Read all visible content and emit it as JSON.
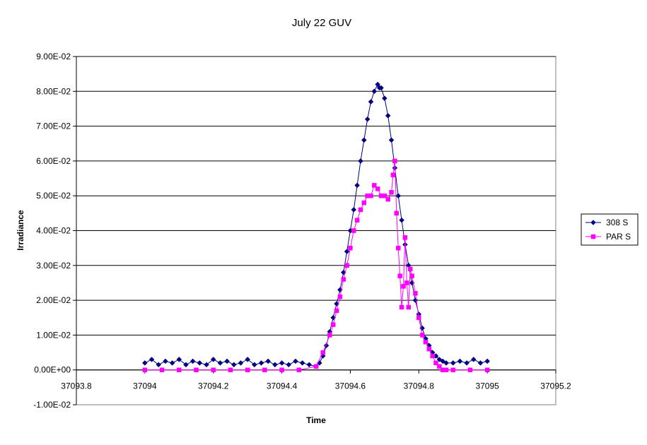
{
  "chart_data": {
    "type": "scatter",
    "title": "July 22 GUV",
    "xlabel": "Time",
    "ylabel": "Irradiance",
    "xlim": [
      37093.8,
      37095.2
    ],
    "ylim": [
      -0.01,
      0.09
    ],
    "x_ticks": [
      37093.8,
      37094,
      37094.2,
      37094.4,
      37094.6,
      37094.8,
      37095,
      37095.2
    ],
    "x_tick_labels": [
      "37093.8",
      "37094",
      "37094.2",
      "37094.4",
      "37094.6",
      "37094.8",
      "37095",
      "37095.2"
    ],
    "y_ticks": [
      -0.01,
      0,
      0.01,
      0.02,
      0.03,
      0.04,
      0.05,
      0.06,
      0.07,
      0.08,
      0.09
    ],
    "y_tick_labels": [
      "-1.00E-02",
      "0.00E+00",
      "1.00E-02",
      "2.00E-02",
      "3.00E-02",
      "4.00E-02",
      "5.00E-02",
      "6.00E-02",
      "7.00E-02",
      "8.00E-02",
      "9.00E-02"
    ],
    "grid": {
      "horizontal": true,
      "vertical": false
    },
    "legend_position": "right",
    "series": [
      {
        "name": "308 S",
        "color": "#000080",
        "marker": "diamond",
        "x": [
          37094.0,
          37094.02,
          37094.04,
          37094.06,
          37094.08,
          37094.1,
          37094.12,
          37094.14,
          37094.16,
          37094.18,
          37094.2,
          37094.22,
          37094.24,
          37094.26,
          37094.28,
          37094.3,
          37094.32,
          37094.34,
          37094.36,
          37094.38,
          37094.4,
          37094.42,
          37094.44,
          37094.46,
          37094.48,
          37094.5,
          37094.51,
          37094.52,
          37094.53,
          37094.54,
          37094.55,
          37094.56,
          37094.57,
          37094.58,
          37094.59,
          37094.6,
          37094.61,
          37094.62,
          37094.63,
          37094.64,
          37094.65,
          37094.66,
          37094.67,
          37094.68,
          37094.685,
          37094.69,
          37094.7,
          37094.71,
          37094.72,
          37094.73,
          37094.74,
          37094.75,
          37094.76,
          37094.77,
          37094.78,
          37094.79,
          37094.8,
          37094.81,
          37094.82,
          37094.83,
          37094.84,
          37094.85,
          37094.86,
          37094.87,
          37094.88,
          37094.9,
          37094.92,
          37094.94,
          37094.96,
          37094.98,
          37095.0
        ],
        "y": [
          0.002,
          0.003,
          0.0015,
          0.0025,
          0.002,
          0.003,
          0.0015,
          0.0025,
          0.002,
          0.0015,
          0.003,
          0.002,
          0.0025,
          0.0015,
          0.002,
          0.003,
          0.0015,
          0.002,
          0.0025,
          0.0015,
          0.002,
          0.0015,
          0.0025,
          0.002,
          0.0015,
          0.001,
          0.002,
          0.004,
          0.007,
          0.011,
          0.015,
          0.019,
          0.023,
          0.028,
          0.034,
          0.04,
          0.046,
          0.053,
          0.06,
          0.066,
          0.072,
          0.077,
          0.08,
          0.082,
          0.081,
          0.081,
          0.078,
          0.073,
          0.066,
          0.058,
          0.05,
          0.043,
          0.036,
          0.03,
          0.025,
          0.02,
          0.016,
          0.012,
          0.009,
          0.007,
          0.005,
          0.004,
          0.003,
          0.0025,
          0.002,
          0.002,
          0.0025,
          0.002,
          0.003,
          0.002,
          0.0025
        ]
      },
      {
        "name": "PAR S",
        "color": "#FF00FF",
        "marker": "square",
        "x": [
          37094.0,
          37094.05,
          37094.1,
          37094.15,
          37094.2,
          37094.25,
          37094.3,
          37094.35,
          37094.4,
          37094.45,
          37094.5,
          37094.52,
          37094.54,
          37094.55,
          37094.56,
          37094.57,
          37094.58,
          37094.59,
          37094.6,
          37094.61,
          37094.62,
          37094.63,
          37094.64,
          37094.65,
          37094.66,
          37094.67,
          37094.68,
          37094.69,
          37094.7,
          37094.71,
          37094.72,
          37094.725,
          37094.73,
          37094.735,
          37094.74,
          37094.745,
          37094.75,
          37094.755,
          37094.76,
          37094.765,
          37094.77,
          37094.775,
          37094.78,
          37094.79,
          37094.8,
          37094.81,
          37094.82,
          37094.83,
          37094.84,
          37094.85,
          37094.86,
          37094.87,
          37094.88,
          37094.9,
          37094.95,
          37095.0
        ],
        "y": [
          0.0,
          0.0,
          0.0,
          0.0,
          0.0,
          0.0,
          0.0,
          0.0,
          0.0,
          0.0,
          0.001,
          0.005,
          0.01,
          0.013,
          0.017,
          0.021,
          0.026,
          0.03,
          0.035,
          0.04,
          0.043,
          0.046,
          0.048,
          0.05,
          0.05,
          0.053,
          0.052,
          0.05,
          0.05,
          0.049,
          0.051,
          0.056,
          0.06,
          0.045,
          0.035,
          0.027,
          0.018,
          0.024,
          0.038,
          0.025,
          0.018,
          0.029,
          0.027,
          0.022,
          0.015,
          0.01,
          0.008,
          0.006,
          0.004,
          0.002,
          0.001,
          0.0,
          0.0,
          0.0,
          0.0,
          0.0
        ]
      }
    ]
  }
}
